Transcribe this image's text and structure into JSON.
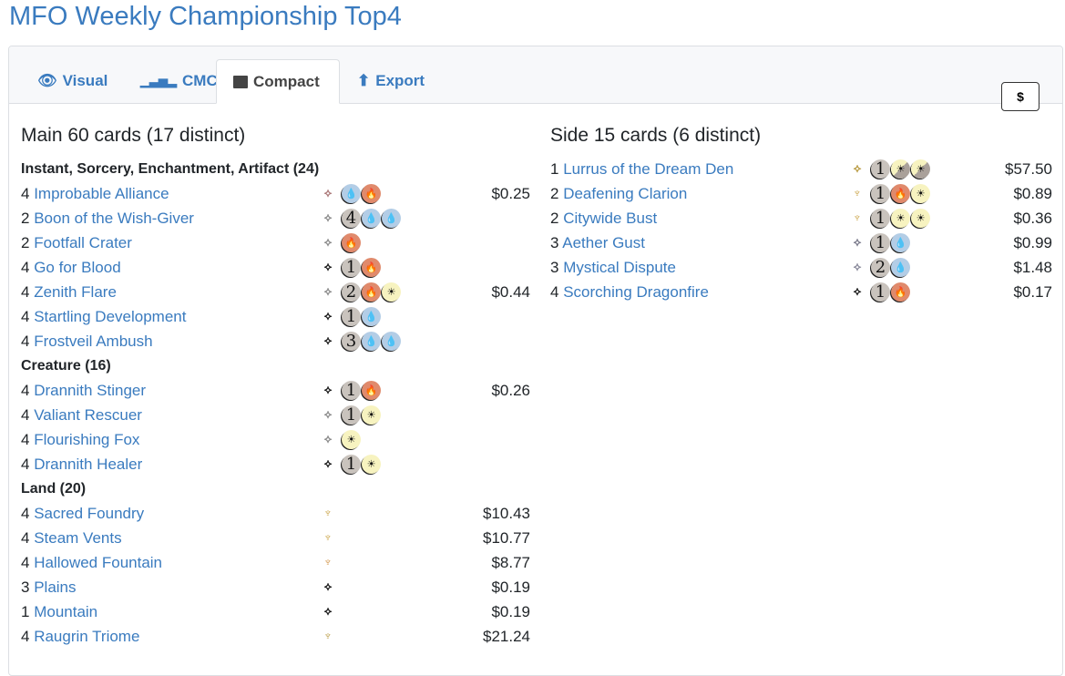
{
  "title": "MFO Weekly Championship Top4",
  "tabs": [
    {
      "label": "Visual",
      "icon": "eye-icon"
    },
    {
      "label": "CMC",
      "icon": "bar-chart-icon"
    },
    {
      "label": "Compact",
      "icon": "archive-icon",
      "active": true
    },
    {
      "label": "Export",
      "icon": "upload-icon"
    }
  ],
  "currency_button": "$",
  "colors": {
    "link": "#3a7bbf",
    "white": "#f7f3c0",
    "blue": "#b3cde6",
    "red": "#e08a6c",
    "generic": "#c9c3bd"
  },
  "main": {
    "heading": "Main 60 cards (17 distinct)",
    "groups": [
      {
        "title": "Instant, Sorcery, Enchantment, Artifact (24)",
        "cards": [
          {
            "count": "4",
            "name": "Improbable Alliance",
            "set": "uncommon-set-icon",
            "setColor": "#a77",
            "mana": [
              "U",
              "R"
            ],
            "price": "$0.25"
          },
          {
            "count": "2",
            "name": "Boon of the Wish-Giver",
            "set": "uncommon-set-icon",
            "setColor": "#888",
            "mana": [
              "4",
              "U",
              "U"
            ],
            "price": ""
          },
          {
            "count": "2",
            "name": "Footfall Crater",
            "set": "uncommon-set-icon",
            "setColor": "#888",
            "mana": [
              "R"
            ],
            "price": ""
          },
          {
            "count": "4",
            "name": "Go for Blood",
            "set": "common-set-icon",
            "setColor": "#111",
            "mana": [
              "1",
              "R"
            ],
            "price": ""
          },
          {
            "count": "4",
            "name": "Zenith Flare",
            "set": "uncommon-set-icon",
            "setColor": "#888",
            "mana": [
              "2",
              "R",
              "W"
            ],
            "price": "$0.44"
          },
          {
            "count": "4",
            "name": "Startling Development",
            "set": "common-set-icon",
            "setColor": "#111",
            "mana": [
              "1",
              "U"
            ],
            "price": ""
          },
          {
            "count": "4",
            "name": "Frostveil Ambush",
            "set": "common-set-icon",
            "setColor": "#111",
            "mana": [
              "3",
              "U",
              "U"
            ],
            "price": ""
          }
        ]
      },
      {
        "title": "Creature (16)",
        "cards": [
          {
            "count": "4",
            "name": "Drannith Stinger",
            "set": "common-set-icon",
            "setColor": "#111",
            "mana": [
              "1",
              "R"
            ],
            "price": "$0.26"
          },
          {
            "count": "4",
            "name": "Valiant Rescuer",
            "set": "uncommon-set-icon",
            "setColor": "#888",
            "mana": [
              "1",
              "W"
            ],
            "price": ""
          },
          {
            "count": "4",
            "name": "Flourishing Fox",
            "set": "uncommon-set-icon",
            "setColor": "#888",
            "mana": [
              "W"
            ],
            "price": ""
          },
          {
            "count": "4",
            "name": "Drannith Healer",
            "set": "common-set-icon",
            "setColor": "#111",
            "mana": [
              "1",
              "W"
            ],
            "price": ""
          }
        ]
      },
      {
        "title": "Land (20)",
        "cards": [
          {
            "count": "4",
            "name": "Sacred Foundry",
            "set": "rare-set-icon",
            "setColor": "#c8a040",
            "mana": [],
            "price": "$10.43"
          },
          {
            "count": "4",
            "name": "Steam Vents",
            "set": "rare-set-icon",
            "setColor": "#c8a040",
            "mana": [],
            "price": "$10.77"
          },
          {
            "count": "4",
            "name": "Hallowed Fountain",
            "set": "rare-set-icon",
            "setColor": "#d09040",
            "mana": [],
            "price": "$8.77"
          },
          {
            "count": "3",
            "name": "Plains",
            "set": "common-set-icon",
            "setColor": "#111",
            "mana": [],
            "price": "$0.19"
          },
          {
            "count": "1",
            "name": "Mountain",
            "set": "common-set-icon",
            "setColor": "#111",
            "mana": [],
            "price": "$0.19"
          },
          {
            "count": "4",
            "name": "Raugrin Triome",
            "set": "rare-set-icon",
            "setColor": "#b89a40",
            "mana": [],
            "price": "$21.24"
          }
        ]
      }
    ]
  },
  "side": {
    "heading": "Side 15 cards (6 distinct)",
    "cards": [
      {
        "count": "1",
        "name": "Lurrus of the Dream Den",
        "set": "mythic-set-icon",
        "setColor": "#b89a40",
        "mana": [
          "1",
          "WB",
          "WB"
        ],
        "price": "$57.50"
      },
      {
        "count": "2",
        "name": "Deafening Clarion",
        "set": "rare-set-icon",
        "setColor": "#c8a040",
        "mana": [
          "1",
          "R",
          "W"
        ],
        "price": "$0.89"
      },
      {
        "count": "2",
        "name": "Citywide Bust",
        "set": "rare-set-icon",
        "setColor": "#c8a040",
        "mana": [
          "1",
          "W",
          "W"
        ],
        "price": "$0.36"
      },
      {
        "count": "3",
        "name": "Aether Gust",
        "set": "uncommon-set-icon",
        "setColor": "#778",
        "mana": [
          "1",
          "U"
        ],
        "price": "$0.99"
      },
      {
        "count": "3",
        "name": "Mystical Dispute",
        "set": "uncommon-set-icon",
        "setColor": "#889",
        "mana": [
          "2",
          "U"
        ],
        "price": "$1.48"
      },
      {
        "count": "4",
        "name": "Scorching Dragonfire",
        "set": "common-set-icon",
        "setColor": "#111",
        "mana": [
          "1",
          "R"
        ],
        "price": "$0.17"
      }
    ]
  }
}
